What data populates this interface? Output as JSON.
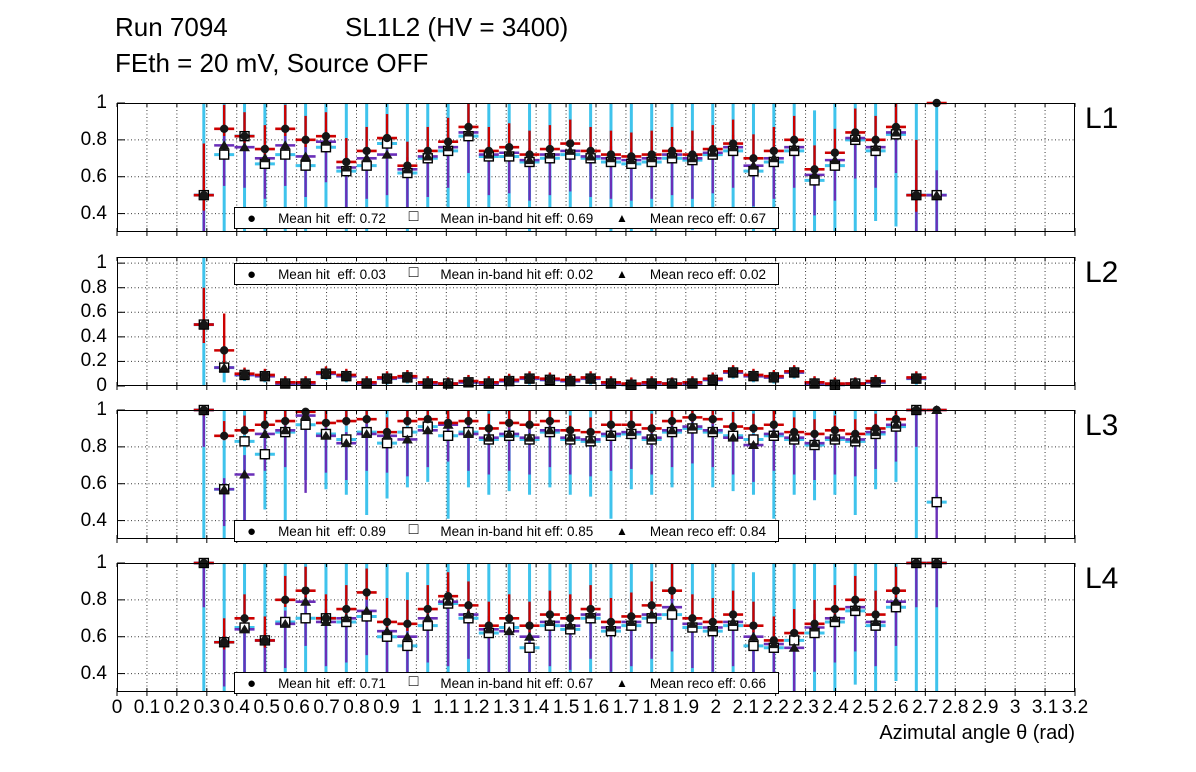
{
  "title": {
    "run": "Run 7094",
    "chamber": "SL1L2 (HV = 3400)",
    "subtitle": "FEth = 20 mV, Source OFF"
  },
  "x_axis": {
    "title": "Azimutal angle θ (rad)",
    "min": 0,
    "max": 3.2,
    "tick_step": 0.1,
    "tick_labels": [
      "0",
      "0.1",
      "0.2",
      "0.3",
      "0.4",
      "0.5",
      "0.6",
      "0.7",
      "0.8",
      "0.9",
      "1",
      "1.1",
      "1.2",
      "1.3",
      "1.4",
      "1.5",
      "1.6",
      "1.7",
      "1.8",
      "1.9",
      "2",
      "2.1",
      "2.2",
      "2.3",
      "2.4",
      "2.5",
      "2.6",
      "2.7",
      "2.8",
      "2.9",
      "3",
      "3.1",
      "3.2"
    ]
  },
  "colors": {
    "hit_err": "#cc0000",
    "inband_err": "#3fc3ec",
    "reco_err": "#6a2fb8",
    "marker": "#161616",
    "grid": "#3a3a3a",
    "frame": "#000000"
  },
  "series_defs": [
    {
      "key": "hit",
      "name": "hit efficiency",
      "marker": "filled-circle",
      "glyph": "●",
      "err_color_key": "hit_err"
    },
    {
      "key": "inband",
      "name": "in-band hit efficiency",
      "marker": "open-square",
      "glyph": "□",
      "err_color_key": "inband_err"
    },
    {
      "key": "reco",
      "name": "reco efficiency",
      "marker": "filled-triangle",
      "glyph": "▲",
      "err_color_key": "reco_err"
    }
  ],
  "chart_data": {
    "type": "scatter",
    "x": [
      0.29,
      0.358,
      0.426,
      0.494,
      0.562,
      0.63,
      0.698,
      0.766,
      0.834,
      0.902,
      0.97,
      1.038,
      1.106,
      1.174,
      1.242,
      1.31,
      1.378,
      1.446,
      1.514,
      1.582,
      1.65,
      1.718,
      1.786,
      1.854,
      1.922,
      1.99,
      2.058,
      2.126,
      2.194,
      2.262,
      2.33,
      2.398,
      2.466,
      2.534,
      2.602,
      2.67,
      2.738
    ],
    "grid": true,
    "panels": [
      {
        "label": "L1",
        "ylim": [
          0.3,
          1.0
        ],
        "yticks": [
          {
            "v": 1,
            "label": "1"
          },
          {
            "v": 0.8,
            "label": "0.8"
          },
          {
            "v": 0.6,
            "label": "0.6"
          },
          {
            "v": 0.4,
            "label": "0.4"
          }
        ],
        "legend_pos": "bottom",
        "legend": [
          {
            "marker": "circle",
            "label": "Mean hit  eff: 0.72",
            "mean": 0.72
          },
          {
            "marker": "square",
            "label": "Mean in-band hit eff: 0.69",
            "mean": 0.69
          },
          {
            "marker": "triangle",
            "label": "Mean reco eff: 0.67",
            "mean": 0.67
          }
        ],
        "series": {
          "hit": {
            "y": [
              0.5,
              0.86,
              0.82,
              0.75,
              0.86,
              0.8,
              0.82,
              0.68,
              0.74,
              0.81,
              0.66,
              0.74,
              0.79,
              0.87,
              0.74,
              0.76,
              0.72,
              0.75,
              0.78,
              0.74,
              0.72,
              0.71,
              0.72,
              0.74,
              0.72,
              0.75,
              0.78,
              0.7,
              0.74,
              0.8,
              0.64,
              0.73,
              0.84,
              0.8,
              0.87,
              0.5,
              1.0
            ],
            "err": {
              "default": 0.13,
              "overrides": {
                "0": 0.28,
                "35": 0.3,
                "36": 0.02
              }
            },
            "asym": [
              1,
              0.3
            ]
          },
          "inband": {
            "y": [
              0.5,
              0.72,
              0.82,
              0.67,
              0.72,
              0.66,
              0.76,
              0.63,
              0.66,
              0.78,
              0.62,
              0.7,
              0.74,
              0.82,
              0.71,
              0.71,
              0.68,
              0.7,
              0.72,
              0.7,
              0.68,
              0.67,
              0.68,
              0.7,
              0.69,
              0.72,
              0.74,
              0.63,
              0.68,
              0.74,
              0.58,
              0.66,
              0.8,
              0.74,
              0.83,
              0.5,
              0.5
            ],
            "err": {
              "default": 0.38,
              "overrides": {
                "0": 0.7,
                "1": 0.5,
                "2": 0.55,
                "4": 0.5,
                "10": 0.5,
                "13": 0.5,
                "29": 0.55,
                "32": 0.6,
                "34": 0.5,
                "35": 0.7,
                "36": 0.7
              }
            },
            "asym": [
              1,
              1
            ]
          },
          "reco": {
            "y": [
              0.5,
              0.77,
              0.76,
              0.7,
              0.77,
              0.71,
              0.79,
              0.65,
              0.7,
              0.72,
              0.64,
              0.71,
              0.76,
              0.84,
              0.72,
              0.73,
              0.69,
              0.72,
              0.74,
              0.71,
              0.7,
              0.69,
              0.7,
              0.72,
              0.7,
              0.73,
              0.76,
              0.66,
              0.7,
              0.76,
              0.61,
              0.69,
              0.81,
              0.76,
              0.84,
              0.5,
              0.5
            ],
            "err": {
              "default": 0.22,
              "overrides": {
                "0": 0.3,
                "35": 0.4,
                "36": 0.45
              }
            },
            "asym": [
              0.3,
              1
            ]
          }
        }
      },
      {
        "label": "L2",
        "ylim": [
          0,
          1.05
        ],
        "yticks": [
          {
            "v": 1,
            "label": "1"
          },
          {
            "v": 0.8,
            "label": "0.8"
          },
          {
            "v": 0.6,
            "label": "0.6"
          },
          {
            "v": 0.4,
            "label": "0.4"
          },
          {
            "v": 0.2,
            "label": "0.2"
          },
          {
            "v": 0,
            "label": "0"
          }
        ],
        "legend_pos": "top",
        "legend": [
          {
            "marker": "circle",
            "label": "Mean hit  eff: 0.03",
            "mean": 0.03
          },
          {
            "marker": "square",
            "label": "Mean in-band hit eff: 0.02",
            "mean": 0.02
          },
          {
            "marker": "triangle",
            "label": "Mean reco eff: 0.02",
            "mean": 0.02
          }
        ],
        "series": {
          "hit": {
            "y": [
              0.5,
              0.29,
              0.1,
              0.09,
              0.03,
              0.03,
              0.11,
              0.09,
              0.03,
              0.07,
              0.08,
              0.03,
              0.02,
              0.04,
              0.03,
              0.05,
              0.07,
              0.06,
              0.05,
              0.07,
              0.03,
              0.02,
              0.03,
              0.02,
              0.03,
              0.06,
              0.12,
              0.09,
              0.08,
              0.12,
              0.03,
              0.02,
              0.02,
              0.04,
              null,
              0.07,
              null
            ],
            "err": {
              "default": 0.05,
              "overrides": {
                "0": 0.3,
                "1": 0.3
              }
            },
            "asym": [
              1,
              0.5
            ]
          },
          "inband": {
            "y": [
              0.5,
              0.15,
              0.09,
              0.08,
              0.02,
              0.02,
              0.1,
              0.08,
              0.02,
              0.06,
              0.07,
              0.02,
              0.02,
              0.03,
              0.02,
              0.04,
              0.06,
              0.05,
              0.04,
              0.06,
              0.02,
              0.01,
              0.02,
              0.02,
              0.02,
              0.05,
              0.11,
              0.08,
              0.07,
              0.11,
              0.02,
              0.01,
              0.02,
              0.03,
              null,
              0.06,
              null
            ],
            "err": {
              "default": 0.05,
              "overrides": {
                "0": 0.55,
                "1": 0.12
              }
            },
            "asym": [
              1,
              1
            ]
          },
          "reco": {
            "y": [
              0.5,
              0.15,
              0.09,
              0.08,
              0.02,
              0.02,
              0.1,
              0.08,
              0.02,
              0.06,
              0.07,
              0.02,
              0.02,
              0.03,
              0.02,
              0.04,
              0.06,
              0.05,
              0.04,
              0.06,
              0.02,
              0.01,
              0.02,
              0.02,
              0.02,
              0.05,
              0.11,
              0.08,
              0.07,
              0.11,
              0.02,
              0.01,
              0.02,
              0.03,
              null,
              0.06,
              null
            ],
            "err": {
              "default": 0.04,
              "overrides": {}
            },
            "asym": [
              0.5,
              1
            ]
          }
        }
      },
      {
        "label": "L3",
        "ylim": [
          0.3,
          1.0
        ],
        "yticks": [
          {
            "v": 1,
            "label": "1"
          },
          {
            "v": 0.8,
            "label": "0.8"
          },
          {
            "v": 0.6,
            "label": "0.6"
          },
          {
            "v": 0.4,
            "label": "0.4"
          }
        ],
        "legend_pos": "bottom",
        "legend": [
          {
            "marker": "circle",
            "label": "Mean hit  eff: 0.89",
            "mean": 0.89
          },
          {
            "marker": "square",
            "label": "Mean in-band hit eff: 0.85",
            "mean": 0.85
          },
          {
            "marker": "triangle",
            "label": "Mean reco eff: 0.84",
            "mean": 0.84
          }
        ],
        "series": {
          "hit": {
            "y": [
              1.0,
              0.86,
              0.89,
              0.92,
              0.94,
              0.99,
              0.93,
              0.94,
              0.95,
              0.88,
              0.94,
              0.95,
              0.93,
              0.94,
              0.9,
              0.93,
              0.92,
              0.94,
              0.89,
              0.88,
              0.92,
              0.92,
              0.9,
              0.94,
              0.96,
              0.95,
              0.91,
              0.9,
              0.92,
              0.88,
              0.87,
              0.89,
              0.87,
              0.9,
              0.95,
              1.0,
              1.0
            ],
            "err": {
              "default": 0.08,
              "overrides": {
                "0": 0.1,
                "36": 0.02
              }
            },
            "asym": [
              1,
              0.3
            ]
          },
          "inband": {
            "y": [
              1.0,
              0.57,
              0.83,
              0.76,
              0.88,
              0.92,
              0.87,
              0.84,
              0.88,
              0.82,
              0.88,
              0.91,
              0.86,
              0.88,
              0.84,
              0.86,
              0.84,
              0.88,
              0.84,
              0.83,
              0.86,
              0.87,
              0.84,
              0.88,
              0.9,
              0.88,
              0.86,
              0.84,
              0.86,
              0.84,
              0.81,
              0.84,
              0.83,
              0.87,
              0.91,
              1.0,
              0.5
            ],
            "err": {
              "default": 0.3,
              "overrides": {
                "0": 0.72,
                "1": 0.55,
                "2": 0.5,
                "4": 0.5,
                "8": 0.45,
                "12": 0.45,
                "20": 0.45,
                "24": 0.5,
                "28": 0.45,
                "32": 0.4,
                "35": 0.72,
                "36": 0.04
              }
            },
            "asym": [
              1,
              1
            ]
          },
          "reco": {
            "y": [
              1.0,
              0.57,
              0.65,
              0.87,
              0.89,
              0.97,
              0.86,
              0.82,
              0.87,
              0.86,
              0.84,
              0.89,
              0.92,
              0.87,
              0.85,
              0.87,
              0.85,
              0.89,
              0.85,
              0.84,
              0.87,
              0.88,
              0.85,
              0.89,
              0.91,
              0.89,
              0.85,
              0.81,
              0.87,
              0.85,
              0.82,
              0.85,
              0.84,
              0.88,
              0.92,
              1.0,
              1.0
            ],
            "err": {
              "default": 0.2,
              "overrides": {
                "2": 0.35,
                "5": 0.42,
                "36": 0.72
              }
            },
            "asym": [
              0.3,
              1
            ]
          }
        }
      },
      {
        "label": "L4",
        "ylim": [
          0.3,
          1.0
        ],
        "yticks": [
          {
            "v": 1,
            "label": "1"
          },
          {
            "v": 0.8,
            "label": "0.8"
          },
          {
            "v": 0.6,
            "label": "0.6"
          },
          {
            "v": 0.4,
            "label": "0.4"
          }
        ],
        "legend_pos": "bottom",
        "legend": [
          {
            "marker": "circle",
            "label": "Mean hit  eff: 0.71",
            "mean": 0.71
          },
          {
            "marker": "square",
            "label": "Mean in-band hit eff: 0.67",
            "mean": 0.67
          },
          {
            "marker": "triangle",
            "label": "Mean reco eff: 0.66",
            "mean": 0.66
          }
        ],
        "series": {
          "hit": {
            "y": [
              1.0,
              0.57,
              0.7,
              0.58,
              0.8,
              0.85,
              0.7,
              0.75,
              0.84,
              0.68,
              0.67,
              0.75,
              0.82,
              0.77,
              0.66,
              0.7,
              0.66,
              0.72,
              0.7,
              0.75,
              0.68,
              0.71,
              0.77,
              0.85,
              0.7,
              0.68,
              0.72,
              0.66,
              0.58,
              0.62,
              0.67,
              0.75,
              0.8,
              0.72,
              0.85,
              1.0,
              1.0
            ],
            "err": {
              "default": 0.13,
              "overrides": {
                "0": 0.02,
                "23": 0.15,
                "35": 0.02,
                "36": 0.02
              }
            },
            "asym": [
              1,
              0.3
            ]
          },
          "inband": {
            "y": [
              1.0,
              0.57,
              0.65,
              0.58,
              0.68,
              0.7,
              0.7,
              0.68,
              0.71,
              0.6,
              0.55,
              0.66,
              0.78,
              0.7,
              0.62,
              0.65,
              0.54,
              0.66,
              0.64,
              0.7,
              0.63,
              0.66,
              0.7,
              0.72,
              0.65,
              0.63,
              0.66,
              0.55,
              0.54,
              0.58,
              0.62,
              0.68,
              0.74,
              0.66,
              0.76,
              1.0,
              1.0
            ],
            "err": {
              "default": 0.4,
              "overrides": {
                "0": 0.72,
                "1": 0.55,
                "3": 0.6,
                "9": 0.5,
                "13": 0.55,
                "16": 0.5,
                "20": 0.5,
                "28": 0.55,
                "29": 0.5,
                "35": 0.72,
                "36": 0.72
              }
            },
            "asym": [
              1,
              1
            ]
          },
          "reco": {
            "y": [
              1.0,
              0.57,
              0.64,
              0.58,
              0.67,
              0.79,
              0.68,
              0.7,
              0.74,
              0.63,
              0.6,
              0.7,
              0.79,
              0.72,
              0.64,
              0.63,
              0.6,
              0.68,
              0.66,
              0.72,
              0.65,
              0.68,
              0.72,
              0.76,
              0.67,
              0.65,
              0.68,
              0.6,
              0.56,
              0.54,
              0.65,
              0.7,
              0.76,
              0.68,
              0.79,
              1.0,
              1.0
            ],
            "err": {
              "default": 0.24,
              "overrides": {
                "12": 0.35,
                "29": 0.4
              }
            },
            "asym": [
              0.3,
              1
            ]
          }
        }
      }
    ]
  }
}
